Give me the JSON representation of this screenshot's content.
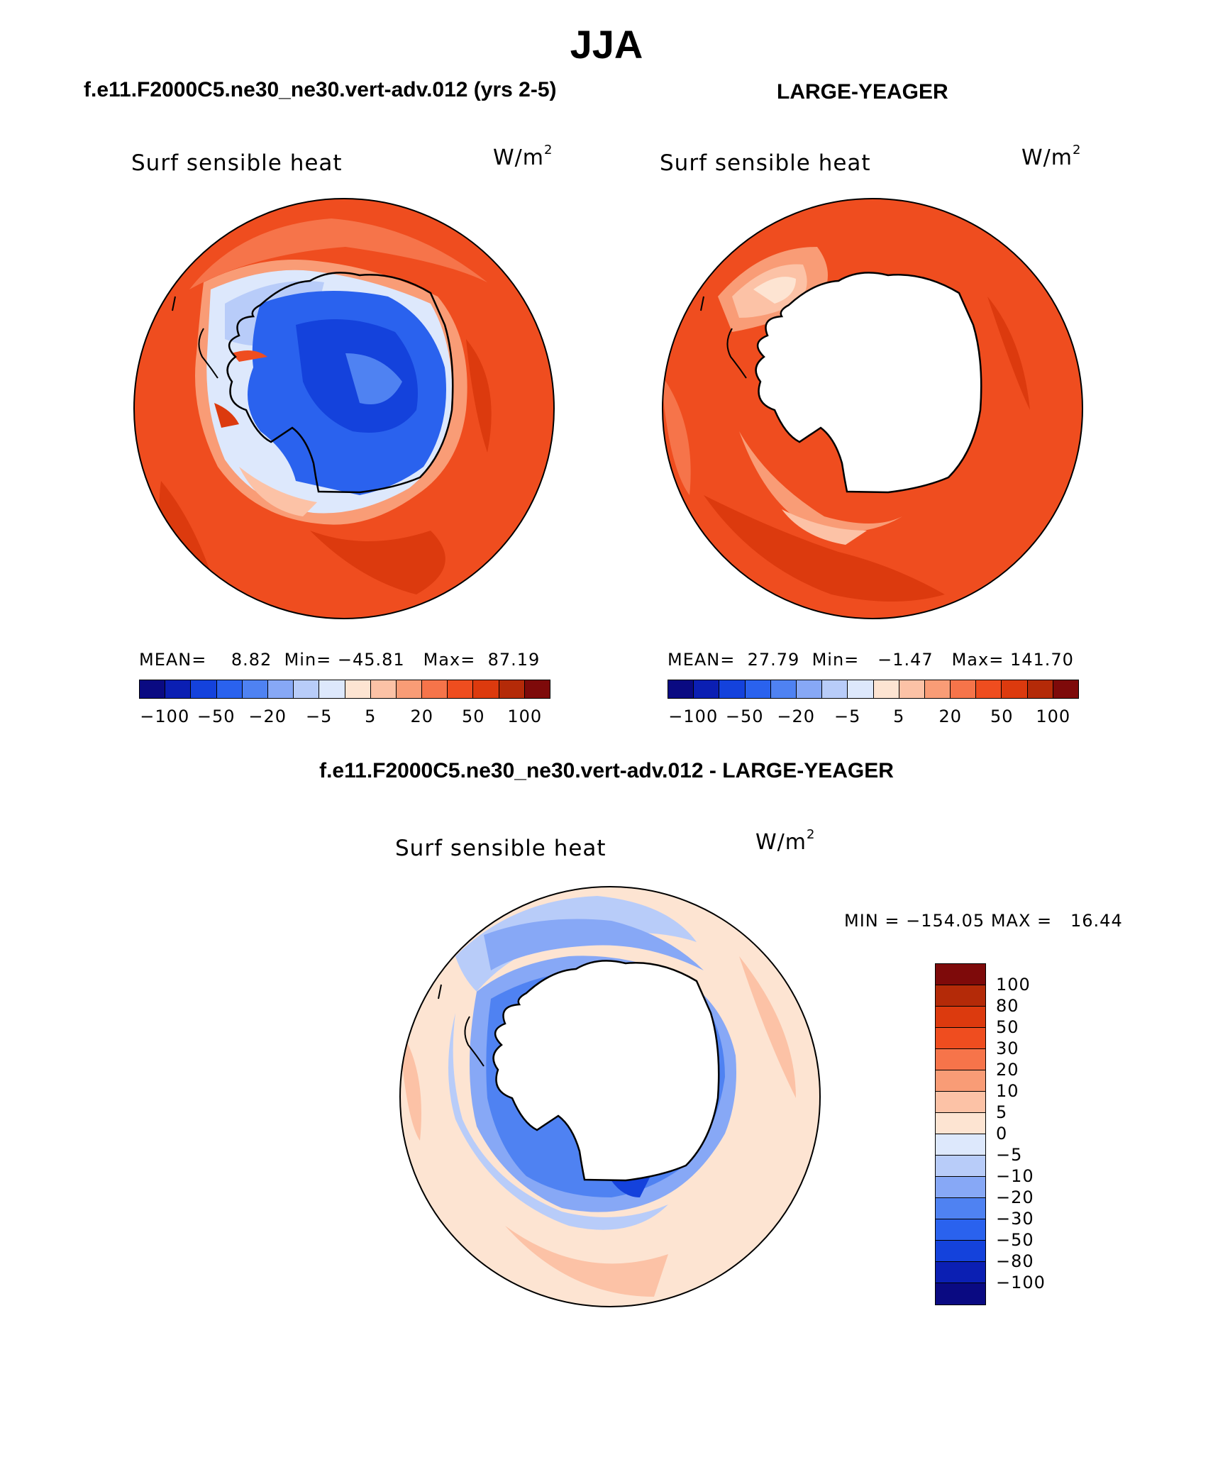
{
  "header": {
    "season": "JJA"
  },
  "panels": [
    {
      "title": "f.e11.F2000C5.ne30_ne30.vert-adv.012 (yrs 2-5)",
      "variable": "Surf sensible heat",
      "units": "W/m",
      "units_sup": "2",
      "stats": "MEAN=    8.82  Min= −45.81   Max=  87.19",
      "colorbar_ticks": [
        "−100",
        "−50",
        "−20",
        "−5",
        "5",
        "20",
        "50",
        "100"
      ]
    },
    {
      "title": "LARGE-YEAGER",
      "variable": "Surf sensible heat",
      "units": "W/m",
      "units_sup": "2",
      "stats": "MEAN=  27.79  Min=   −1.47   Max= 141.70",
      "colorbar_ticks": [
        "−100",
        "−50",
        "−20",
        "−5",
        "5",
        "20",
        "50",
        "100"
      ]
    },
    {
      "title": "f.e11.F2000C5.ne30_ne30.vert-adv.012 - LARGE-YEAGER",
      "variable": "Surf sensible heat",
      "units": "W/m",
      "units_sup": "2",
      "stats": "MIN = −154.05 MAX =   16.44",
      "colorbar_ticks": [
        "100",
        "80",
        "50",
        "30",
        "20",
        "10",
        "5",
        "0",
        "−5",
        "−10",
        "−20",
        "−30",
        "−50",
        "−80",
        "−100"
      ]
    }
  ],
  "colors": {
    "abs_palette": [
      "#0a0a82",
      "#0b1fb3",
      "#1442dc",
      "#2a62ee",
      "#4f82f2",
      "#87a8f6",
      "#b8ccf9",
      "#dde8fc",
      "#fde4d2",
      "#fcc2a6",
      "#f99c76",
      "#f6744a",
      "#ef4d1f",
      "#dc3a0e",
      "#b42a08",
      "#7e0a0a"
    ],
    "diff_palette": [
      "#7e0a0a",
      "#b42a08",
      "#dc3a0e",
      "#ef4d1f",
      "#f6744a",
      "#f99c76",
      "#fcc2a6",
      "#fde4d2",
      "#dde8fc",
      "#b8ccf9",
      "#87a8f6",
      "#4f82f2",
      "#2a62ee",
      "#1442dc",
      "#0b1fb3",
      "#0a0a82"
    ]
  }
}
